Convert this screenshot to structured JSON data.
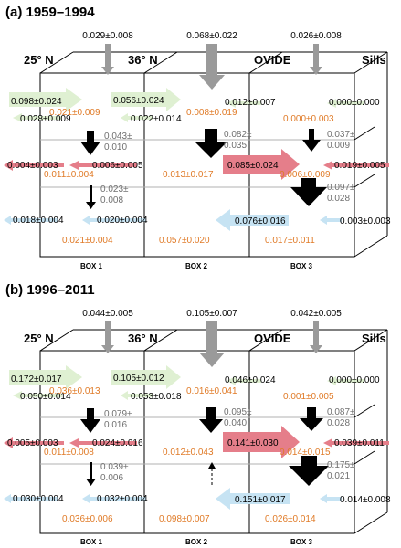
{
  "colors": {
    "black": "#000000",
    "orange": "#e07b28",
    "gray_text": "#707070",
    "gray_arrow": "#9a9a9a",
    "green": "#dff0d2",
    "red": "#e57e8a",
    "blue": "#c6e3f3",
    "box_line": "#000000",
    "level_line": "#b0b0b0"
  },
  "panels": [
    {
      "title": "(a) 1959–1994",
      "section_labels": [
        "25° N",
        "36° N",
        "OVIDE",
        "Sills"
      ],
      "box_labels": [
        "BOX 1",
        "BOX 2",
        "BOX 3"
      ],
      "top_inputs": [
        "0.029±0.008",
        "0.068±0.022",
        "0.026±0.008"
      ],
      "boxes": [
        {
          "layer1": {
            "in": "0.098±0.024",
            "out": "0.028±0.009",
            "internal": "0.021±0.009"
          },
          "down12": "0.043±\n0.010",
          "layer2": {
            "left": "0.004±0.003",
            "internal": "0.011±0.004"
          },
          "down23": "0.023±\n0.008",
          "layer3": {
            "left": "0.018±0.004",
            "internal": "0.021±0.004"
          }
        },
        {
          "layer1": {
            "in": "0.056±0.024",
            "out": "0.022±0.014",
            "internal": "0.008±0.019"
          },
          "down12": "0.082±\n0.035",
          "layer2": {
            "left": "0.006±0.005",
            "internal": "0.013±0.017"
          },
          "layer3": {
            "left": "0.020±0.004",
            "internal": "0.057±0.020"
          }
        },
        {
          "layer1": {
            "left": "0.012±0.007",
            "right": "0.000±0.000",
            "internal": "0.000±0.003"
          },
          "down12": "0.037±\n0.009",
          "layer2": {
            "left": "0.085±0.024",
            "right": "0.019±0.005",
            "internal": "0.006±0.009"
          },
          "down23": "0.097±\n0.028",
          "layer3": {
            "left": "0.076±0.016",
            "right": "0.003±0.003",
            "internal": "0.017±0.011"
          }
        }
      ]
    },
    {
      "title": "(b) 1996–2011",
      "section_labels": [
        "25° N",
        "36° N",
        "OVIDE",
        "Sills"
      ],
      "box_labels": [
        "BOX 1",
        "BOX 2",
        "BOX 3"
      ],
      "top_inputs": [
        "0.044±0.005",
        "0.105±0.007",
        "0.042±0.005"
      ],
      "boxes": [
        {
          "layer1": {
            "in": "0.172±0.017",
            "out": "0.050±0.014",
            "internal": "0.036±0.013"
          },
          "down12": "0.079±\n0.016",
          "layer2": {
            "left": "0.005±0.003",
            "internal": "0.011±0.008"
          },
          "down23": "0.039±\n0.006",
          "layer3": {
            "left": "0.030±0.004",
            "internal": "0.036±0.006"
          }
        },
        {
          "layer1": {
            "in": "0.105±0.012",
            "out": "0.053±0.018",
            "internal": "0.016±0.041"
          },
          "down12": "0.095±\n0.040",
          "layer2": {
            "left": "0.024±0.016",
            "internal": "0.012±0.043"
          },
          "layer3": {
            "left": "0.032±0.004",
            "internal": "0.098±0.007"
          }
        },
        {
          "layer1": {
            "left": "0.046±0.024",
            "right": "0.000±0.000",
            "internal": "0.001±0.005"
          },
          "down12": "0.087±\n0.028",
          "layer2": {
            "left": "0.141±0.030",
            "right": "0.039±0.011",
            "internal": "0.014±0.015"
          },
          "down23": "0.175±\n0.021",
          "layer3": {
            "left": "0.151±0.017",
            "right": "0.014±0.008",
            "internal": "0.026±0.014"
          }
        }
      ]
    }
  ]
}
